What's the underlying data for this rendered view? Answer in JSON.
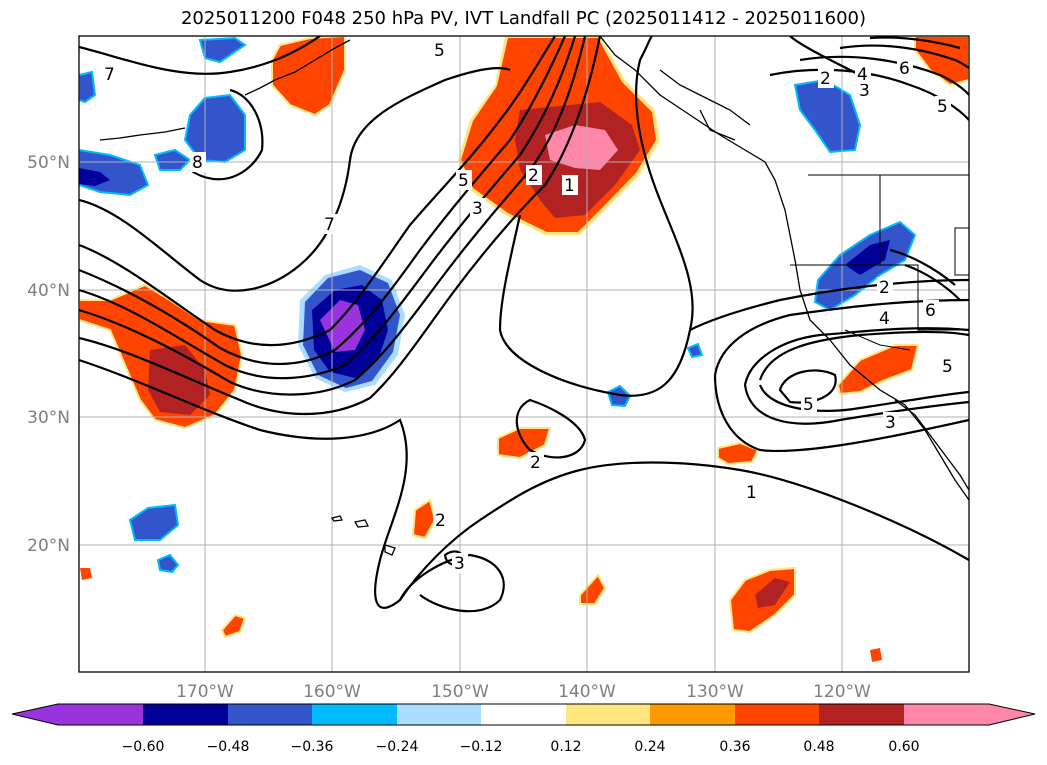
{
  "title": "2025011200 F048 250 hPa PV, IVT Landfall PC (2025011412 - 2025011600)",
  "lat_labels": [
    "50°N",
    "40°N",
    "30°N",
    "20°N"
  ],
  "lon_labels": [
    "170°W",
    "160°W",
    "150°W",
    "140°W",
    "130°W",
    "120°W"
  ],
  "colorbar": {
    "colors": [
      "#9933dd",
      "#000099",
      "#3355cc",
      "#00bbff",
      "#aaddff",
      "#ffffff",
      "#ffe680",
      "#ff9900",
      "#ff4400",
      "#b22222",
      "#ff88aa"
    ],
    "tick_labels": [
      "−0.60",
      "−0.48",
      "−0.36",
      "−0.24",
      "−0.12",
      "0.12",
      "0.24",
      "0.36",
      "0.48",
      "0.60"
    ]
  },
  "contour_labels": [
    "7",
    "8",
    "7",
    "5",
    "3",
    "2",
    "1",
    "5",
    "2",
    "2",
    "3",
    "3",
    "1",
    "5",
    "4",
    "2",
    "6",
    "5",
    "3",
    "2",
    "4",
    "6",
    "5"
  ]
}
